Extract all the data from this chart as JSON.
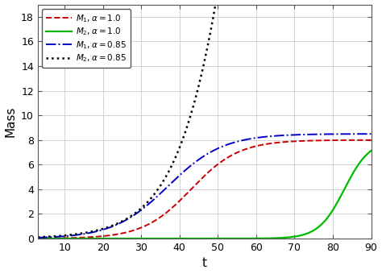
{
  "title": "",
  "xlabel": "t",
  "ylabel": "Mass",
  "xlim": [
    3,
    90
  ],
  "ylim": [
    0,
    19
  ],
  "xticks": [
    10,
    20,
    30,
    40,
    50,
    60,
    70,
    80,
    90
  ],
  "yticks": [
    0,
    2,
    4,
    6,
    8,
    10,
    12,
    14,
    16,
    18
  ],
  "legend": [
    {
      "label": "$M_1,\\alpha = 1.0$",
      "color": "#cc0000",
      "linestyle": "--",
      "linewidth": 1.4
    },
    {
      "label": "$M_2,\\alpha = 1.0$",
      "color": "#00bb00",
      "linestyle": "-",
      "linewidth": 1.6
    },
    {
      "label": "$M_1,\\alpha = 0.85$",
      "color": "#0000cc",
      "linestyle": "-.",
      "linewidth": 1.4
    },
    {
      "label": "$M_2,\\alpha = 0.85$",
      "color": "#000000",
      "linestyle": ":",
      "linewidth": 1.8
    }
  ],
  "background_color": "#ffffff",
  "grid_color": "#cccccc",
  "M1_alpha1_params": {
    "L": 8.0,
    "k": 0.16,
    "t0": 43
  },
  "M2_alpha1_params": {
    "L": 8.0,
    "k": 0.3,
    "t0": 83
  },
  "M1_alpha085_params": {
    "L": 8.5,
    "k": 0.14,
    "t0": 37
  },
  "M2_alpha085_params": {
    "L": 100.0,
    "k": 0.115,
    "t0": 62
  }
}
